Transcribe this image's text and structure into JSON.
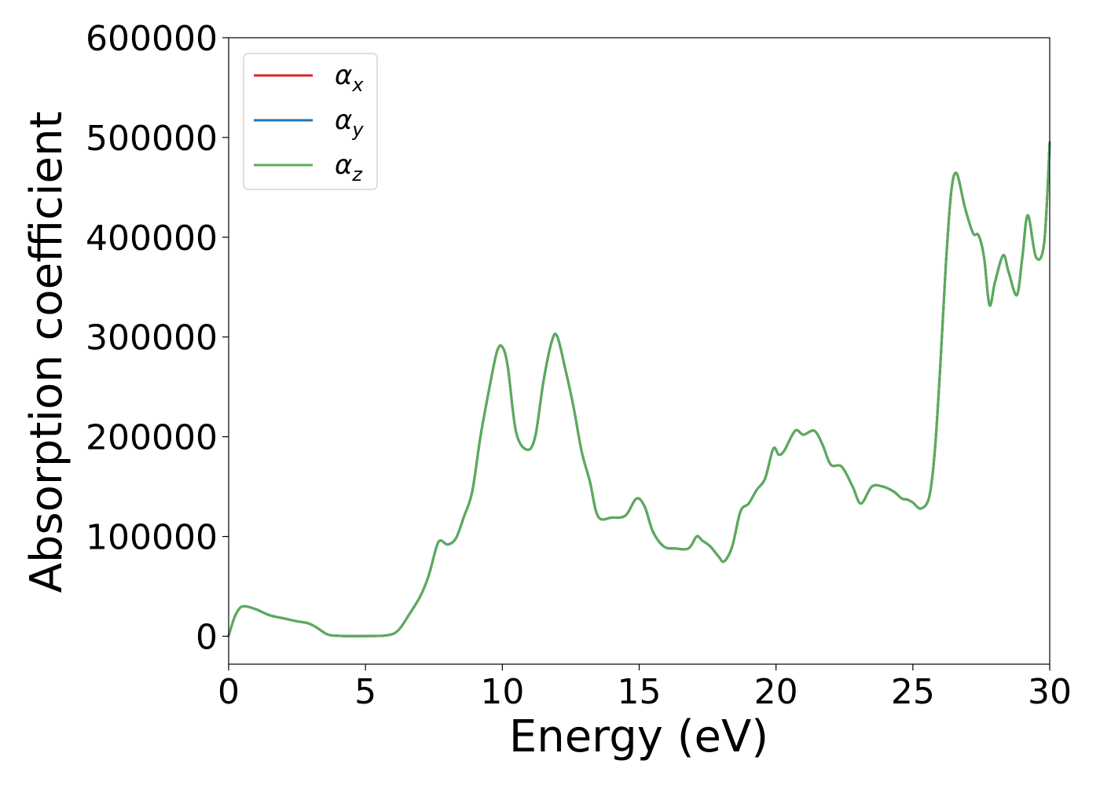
{
  "chart_data": {
    "type": "line",
    "title": "",
    "xlabel": "Energy (eV)",
    "ylabel": "Absorption coefficient",
    "xlim": [
      0,
      30
    ],
    "ylim": [
      -28000,
      600000
    ],
    "xticks": [
      "0",
      "5",
      "10",
      "15",
      "20",
      "25",
      "30"
    ],
    "yticks": [
      "0",
      "100000",
      "200000",
      "300000",
      "400000",
      "500000",
      "600000"
    ],
    "xtick_values": [
      0,
      5,
      10,
      15,
      20,
      25,
      30
    ],
    "ytick_values": [
      0,
      100000,
      200000,
      300000,
      400000,
      500000,
      600000
    ],
    "grid": false,
    "legend_position": "top-left",
    "colors": {
      "alpha_x": "#d62728",
      "alpha_y": "#1f77b4",
      "alpha_z": "#5aac5a"
    },
    "series": [
      {
        "name": "αx",
        "legend_base": "α",
        "legend_sub": "x",
        "color": "#d62728",
        "x": [
          0,
          0.2,
          0.4,
          0.6,
          1.0,
          1.5,
          2.0,
          2.5,
          2.9,
          3.2,
          3.6,
          4.0,
          5.0,
          5.8,
          6.2,
          6.6,
          7.0,
          7.3,
          7.6,
          7.75,
          8.0,
          8.3,
          8.6,
          8.9,
          9.2,
          9.5,
          9.8,
          10.0,
          10.2,
          10.5,
          10.9,
          11.2,
          11.5,
          11.8,
          12.0,
          12.3,
          12.6,
          12.9,
          13.2,
          13.5,
          14.0,
          14.5,
          14.9,
          15.2,
          15.5,
          15.9,
          16.3,
          16.8,
          17.1,
          17.3,
          17.6,
          17.9,
          18.1,
          18.4,
          18.7,
          19.0,
          19.3,
          19.6,
          19.9,
          20.1,
          20.3,
          20.7,
          21.0,
          21.4,
          21.7,
          22.0,
          22.4,
          22.8,
          23.1,
          23.5,
          23.9,
          24.3,
          24.6,
          24.8,
          25.0,
          25.3,
          25.6,
          25.8,
          26.0,
          26.2,
          26.4,
          26.6,
          26.9,
          27.2,
          27.4,
          27.6,
          27.8,
          28.0,
          28.3,
          28.5,
          28.8,
          29.0,
          29.2,
          29.5,
          29.8,
          30.0
        ],
        "values": [
          500,
          18000,
          28000,
          30000,
          27000,
          21000,
          18000,
          15000,
          13000,
          9000,
          2000,
          500,
          200,
          1000,
          6000,
          22000,
          40000,
          60000,
          90000,
          96000,
          92000,
          98000,
          120000,
          145000,
          200000,
          245000,
          285000,
          290000,
          270000,
          205000,
          187000,
          200000,
          255000,
          295000,
          301000,
          268000,
          230000,
          185000,
          155000,
          120000,
          119000,
          121000,
          138000,
          130000,
          105000,
          90000,
          88000,
          88000,
          100000,
          96000,
          90000,
          80000,
          75000,
          90000,
          125000,
          133000,
          147000,
          158000,
          188000,
          182000,
          186000,
          206000,
          202000,
          206000,
          192000,
          172000,
          170000,
          150000,
          133000,
          150000,
          150000,
          145000,
          138000,
          137000,
          134000,
          128000,
          140000,
          185000,
          270000,
          370000,
          445000,
          464000,
          430000,
          404000,
          402000,
          380000,
          332000,
          355000,
          382000,
          365000,
          342000,
          380000,
          422000,
          380000,
          395000,
          495000
        ]
      },
      {
        "name": "αy",
        "legend_base": "α",
        "legend_sub": "y",
        "color": "#1f77b4",
        "x": [
          0,
          0.2,
          0.4,
          0.6,
          1.0,
          1.5,
          2.0,
          2.5,
          2.9,
          3.2,
          3.6,
          4.0,
          5.0,
          5.8,
          6.2,
          6.6,
          7.0,
          7.3,
          7.6,
          7.75,
          8.0,
          8.3,
          8.6,
          8.9,
          9.2,
          9.5,
          9.8,
          10.0,
          10.2,
          10.5,
          10.9,
          11.2,
          11.5,
          11.8,
          12.0,
          12.3,
          12.6,
          12.9,
          13.2,
          13.5,
          14.0,
          14.5,
          14.9,
          15.2,
          15.5,
          15.9,
          16.3,
          16.8,
          17.1,
          17.3,
          17.6,
          17.9,
          18.1,
          18.4,
          18.7,
          19.0,
          19.3,
          19.6,
          19.9,
          20.1,
          20.3,
          20.7,
          21.0,
          21.4,
          21.7,
          22.0,
          22.4,
          22.8,
          23.1,
          23.5,
          23.9,
          24.3,
          24.6,
          24.8,
          25.0,
          25.3,
          25.6,
          25.8,
          26.0,
          26.2,
          26.4,
          26.6,
          26.9,
          27.2,
          27.4,
          27.6,
          27.8,
          28.0,
          28.3,
          28.5,
          28.8,
          29.0,
          29.2,
          29.5,
          29.8,
          30.0
        ],
        "values": [
          500,
          18000,
          28000,
          30000,
          27000,
          21000,
          18000,
          15000,
          13000,
          9000,
          2000,
          500,
          200,
          1000,
          6000,
          22000,
          40000,
          60000,
          90000,
          96000,
          92000,
          98000,
          120000,
          145000,
          200000,
          245000,
          285000,
          290000,
          270000,
          205000,
          187000,
          200000,
          255000,
          295000,
          301000,
          268000,
          230000,
          185000,
          155000,
          120000,
          119000,
          121000,
          138000,
          130000,
          105000,
          90000,
          88000,
          88000,
          100000,
          96000,
          90000,
          80000,
          75000,
          90000,
          125000,
          133000,
          147000,
          158000,
          188000,
          182000,
          186000,
          206000,
          202000,
          206000,
          192000,
          172000,
          170000,
          150000,
          133000,
          150000,
          150000,
          145000,
          138000,
          137000,
          134000,
          128000,
          140000,
          185000,
          270000,
          370000,
          445000,
          464000,
          430000,
          404000,
          402000,
          380000,
          332000,
          355000,
          382000,
          365000,
          342000,
          380000,
          422000,
          380000,
          395000,
          495000
        ]
      },
      {
        "name": "αz",
        "legend_base": "α",
        "legend_sub": "z",
        "color": "#5aac5a",
        "x": [
          0,
          0.2,
          0.4,
          0.6,
          1.0,
          1.5,
          2.0,
          2.5,
          2.9,
          3.2,
          3.6,
          4.0,
          5.0,
          5.8,
          6.2,
          6.6,
          7.0,
          7.3,
          7.6,
          7.75,
          8.0,
          8.3,
          8.6,
          8.9,
          9.2,
          9.5,
          9.8,
          10.0,
          10.2,
          10.5,
          10.9,
          11.2,
          11.5,
          11.8,
          12.0,
          12.3,
          12.6,
          12.9,
          13.2,
          13.5,
          14.0,
          14.5,
          14.9,
          15.2,
          15.5,
          15.9,
          16.3,
          16.8,
          17.1,
          17.3,
          17.6,
          17.9,
          18.1,
          18.4,
          18.7,
          19.0,
          19.3,
          19.6,
          19.9,
          20.1,
          20.3,
          20.7,
          21.0,
          21.4,
          21.7,
          22.0,
          22.4,
          22.8,
          23.1,
          23.5,
          23.9,
          24.3,
          24.6,
          24.8,
          25.0,
          25.3,
          25.6,
          25.8,
          26.0,
          26.2,
          26.4,
          26.6,
          26.9,
          27.2,
          27.4,
          27.6,
          27.8,
          28.0,
          28.3,
          28.5,
          28.8,
          29.0,
          29.2,
          29.5,
          29.8,
          30.0
        ],
        "values": [
          500,
          18000,
          28000,
          30000,
          27000,
          21000,
          18000,
          15000,
          13000,
          9000,
          2000,
          500,
          200,
          1000,
          6000,
          22000,
          40000,
          60000,
          90000,
          96000,
          92000,
          98000,
          120000,
          145000,
          200000,
          245000,
          285000,
          290000,
          270000,
          205000,
          187000,
          200000,
          255000,
          295000,
          301000,
          268000,
          230000,
          185000,
          155000,
          120000,
          119000,
          121000,
          138000,
          130000,
          105000,
          90000,
          88000,
          88000,
          100000,
          96000,
          90000,
          80000,
          75000,
          90000,
          125000,
          133000,
          147000,
          158000,
          188000,
          182000,
          186000,
          206000,
          202000,
          206000,
          192000,
          172000,
          170000,
          150000,
          133000,
          150000,
          150000,
          145000,
          138000,
          137000,
          134000,
          128000,
          140000,
          185000,
          270000,
          370000,
          445000,
          464000,
          430000,
          404000,
          402000,
          380000,
          332000,
          355000,
          382000,
          365000,
          342000,
          380000,
          422000,
          380000,
          395000,
          495000
        ]
      }
    ]
  }
}
